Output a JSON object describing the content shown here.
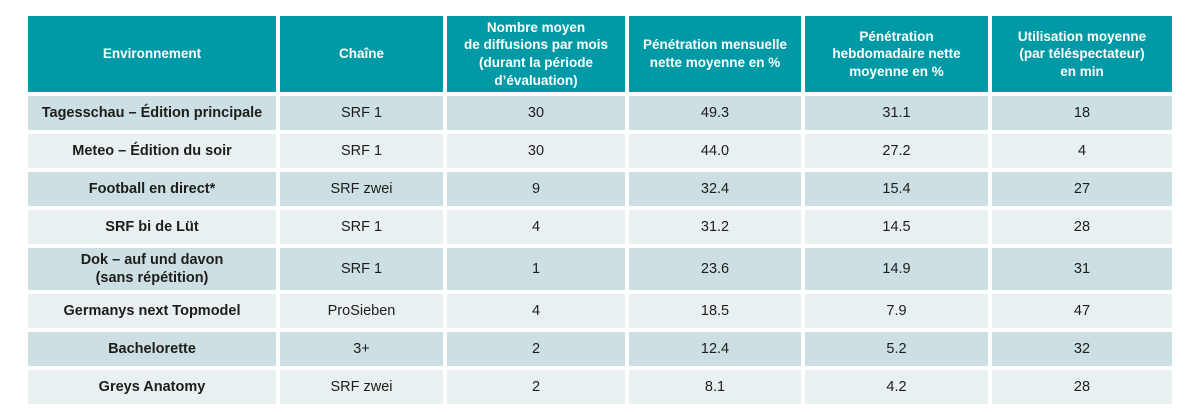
{
  "table": {
    "columns": [
      {
        "id": "environment",
        "label": "Environnement"
      },
      {
        "id": "channel",
        "label": "Chaîne"
      },
      {
        "id": "broadcasts",
        "label": "Nombre moyen\nde diffusions par mois\n(durant la période\nd’évaluation)"
      },
      {
        "id": "monthly-penetration",
        "label": "Pénétration mensuelle\nnette moyenne en %"
      },
      {
        "id": "weekly-penetration",
        "label": "Pénétration\nhebdomadaire nette\nmoyenne en %"
      },
      {
        "id": "avg-usage",
        "label": "Utilisation moyenne\n(par téléspectateur)\nen min"
      }
    ],
    "rows": [
      [
        "Tagesschau – Édition principale",
        "SRF 1",
        "30",
        "49.3",
        "31.1",
        "18"
      ],
      [
        "Meteo – Édition du soir",
        "SRF 1",
        "30",
        "44.0",
        "27.2",
        "4"
      ],
      [
        "Football en direct*",
        "SRF zwei",
        "9",
        "32.4",
        "15.4",
        "27"
      ],
      [
        "SRF bi de Lüt",
        "SRF 1",
        "4",
        "31.2",
        "14.5",
        "28"
      ],
      [
        "Dok – auf und davon\n(sans répétition)",
        "SRF 1",
        "1",
        "23.6",
        "14.9",
        "31"
      ],
      [
        "Germanys next Topmodel",
        "ProSieben",
        "4",
        "18.5",
        "7.9",
        "47"
      ],
      [
        "Bachelorette",
        "3+",
        "2",
        "12.4",
        "5.2",
        "32"
      ],
      [
        "Greys Anatomy",
        "SRF zwei",
        "2",
        "8.1",
        "4.2",
        "28"
      ]
    ]
  },
  "colors": {
    "header_bg": "#0099a6",
    "header_text": "#ffffff",
    "row_dark": "#ccdfe2",
    "row_light": "#e9f0f1",
    "body_text": "#1d1d1b"
  }
}
